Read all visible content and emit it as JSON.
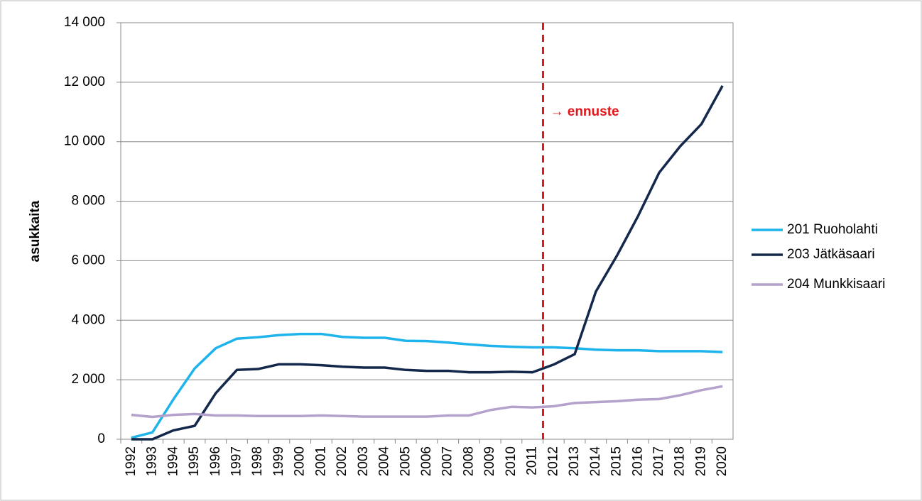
{
  "chart_data": {
    "type": "line",
    "y_label": "asukkaita",
    "annotation": "→ ennuste",
    "categories": [
      "1992",
      "1993",
      "1994",
      "1995",
      "1996",
      "1997",
      "1998",
      "1999",
      "2000",
      "2001",
      "2002",
      "2003",
      "2004",
      "2005",
      "2006",
      "2007",
      "2008",
      "2009",
      "2010",
      "2011",
      "2012",
      "2013",
      "2014",
      "2015",
      "2016",
      "2017",
      "2018",
      "2019",
      "2020"
    ],
    "series": [
      {
        "name": "201 Ruoholahti",
        "color": "#1eb4eb",
        "values": [
          50,
          230,
          1350,
          2380,
          3060,
          3380,
          3430,
          3500,
          3540,
          3540,
          3440,
          3410,
          3410,
          3310,
          3300,
          3250,
          3190,
          3140,
          3110,
          3090,
          3090,
          3060,
          3010,
          2990,
          2990,
          2960,
          2960,
          2960,
          2930
        ]
      },
      {
        "name": "203 Jätkäsaari",
        "color": "#13284a",
        "values": [
          0,
          0,
          300,
          450,
          1550,
          2330,
          2360,
          2520,
          2520,
          2490,
          2440,
          2410,
          2410,
          2330,
          2300,
          2300,
          2250,
          2250,
          2270,
          2250,
          2510,
          2860,
          4960,
          6170,
          7500,
          8960,
          9850,
          10590,
          11880
        ]
      },
      {
        "name": "204 Munkkisaari",
        "color": "#b4a2cc",
        "values": [
          820,
          750,
          820,
          850,
          800,
          800,
          780,
          780,
          780,
          800,
          780,
          760,
          760,
          760,
          760,
          800,
          800,
          980,
          1090,
          1070,
          1110,
          1220,
          1250,
          1280,
          1330,
          1350,
          1480,
          1650,
          1780
        ]
      }
    ],
    "ylim": [
      0,
      14000
    ],
    "yticks": [
      0,
      {
        "value": 2000,
        "label": "2 000"
      },
      {
        "value": 4000,
        "label": "4 000"
      },
      {
        "value": 6000,
        "label": "6 000"
      },
      {
        "value": 8000,
        "label": "8 000"
      },
      {
        "value": 10000,
        "label": "10 000"
      },
      {
        "value": 12000,
        "label": "12 000"
      },
      {
        "value": 14000,
        "label": "14 000"
      }
    ],
    "grid": true,
    "legend": "right"
  }
}
